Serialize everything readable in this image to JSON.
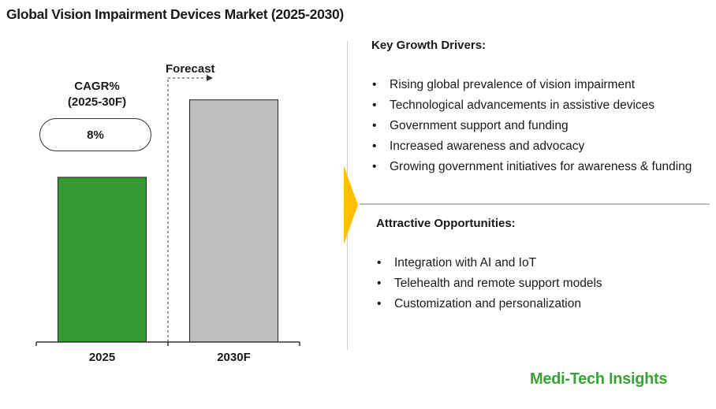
{
  "title": "Global Vision Impairment Devices Market (2025-2030)",
  "cagr": {
    "label_line1": "CAGR%",
    "label_line2": "(2025-30F)",
    "value": "8%"
  },
  "forecast_label": "Forecast",
  "chart_data": {
    "type": "bar",
    "categories": [
      "2025",
      "2030F"
    ],
    "values": [
      100,
      147
    ],
    "ylim": [
      0,
      155
    ],
    "colors": [
      "#339933",
      "#bfbfbf"
    ],
    "grid": false,
    "forecast_from": "2030F"
  },
  "drivers": {
    "heading": "Key Growth Drivers:",
    "items": [
      "Rising global prevalence of vision impairment",
      "Technological advancements in assistive devices",
      "Government support and funding",
      "Increased awareness and advocacy",
      "Growing government initiatives for awareness & funding"
    ]
  },
  "opportunities": {
    "heading": "Attractive Opportunities:",
    "items": [
      "Integration with AI and IoT",
      "Telehealth and remote support models",
      "Customization and personalization"
    ]
  },
  "bullet_glyph": "•",
  "brand": "Medi-Tech Insights",
  "accent_arrow_color": "#ffc000",
  "brand_color": "#3aa335"
}
